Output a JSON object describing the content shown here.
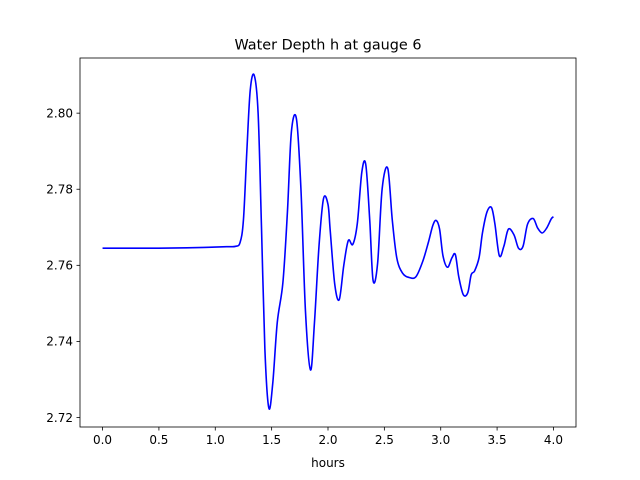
{
  "chart_data": {
    "type": "line",
    "title": "Water Depth h at gauge 6",
    "xlabel": "hours",
    "ylabel": "",
    "xlim": [
      -0.2,
      4.2
    ],
    "ylim": [
      2.7175,
      2.8145
    ],
    "xticks": [
      0.0,
      0.5,
      1.0,
      1.5,
      2.0,
      2.5,
      3.0,
      3.5,
      4.0
    ],
    "xtick_labels": [
      "0.0",
      "0.5",
      "1.0",
      "1.5",
      "2.0",
      "2.5",
      "3.0",
      "3.5",
      "4.0"
    ],
    "yticks": [
      2.72,
      2.74,
      2.76,
      2.78,
      2.8
    ],
    "ytick_labels": [
      "2.72",
      "2.74",
      "2.76",
      "2.78",
      "2.80"
    ],
    "grid": false,
    "legend": "none",
    "series": [
      {
        "color": "#0000ff",
        "x": [
          0.0,
          0.25,
          0.5,
          0.75,
          0.9,
          1.0,
          1.1,
          1.18,
          1.22,
          1.25,
          1.28,
          1.31,
          1.345,
          1.38,
          1.41,
          1.44,
          1.475,
          1.51,
          1.55,
          1.6,
          1.64,
          1.675,
          1.72,
          1.76,
          1.8,
          1.845,
          1.88,
          1.92,
          1.96,
          2.0,
          2.02,
          2.06,
          2.1,
          2.14,
          2.18,
          2.22,
          2.26,
          2.3,
          2.335,
          2.37,
          2.4,
          2.44,
          2.48,
          2.53,
          2.57,
          2.61,
          2.66,
          2.72,
          2.78,
          2.84,
          2.89,
          2.93,
          2.96,
          2.99,
          3.02,
          3.06,
          3.1,
          3.13,
          3.16,
          3.2,
          3.24,
          3.27,
          3.3,
          3.34,
          3.37,
          3.41,
          3.45,
          3.48,
          3.52,
          3.56,
          3.6,
          3.65,
          3.69,
          3.73,
          3.77,
          3.82,
          3.86,
          3.9,
          3.94,
          3.98,
          4.0
        ],
        "y": [
          2.7645,
          2.7645,
          2.7645,
          2.7646,
          2.7647,
          2.7648,
          2.7649,
          2.765,
          2.766,
          2.772,
          2.79,
          2.806,
          2.81,
          2.8,
          2.77,
          2.738,
          2.7225,
          2.729,
          2.745,
          2.7555,
          2.774,
          2.795,
          2.7985,
          2.78,
          2.748,
          2.7325,
          2.745,
          2.765,
          2.7775,
          2.776,
          2.769,
          2.755,
          2.751,
          2.76,
          2.7665,
          2.7655,
          2.771,
          2.7845,
          2.7865,
          2.772,
          2.756,
          2.7605,
          2.78,
          2.7855,
          2.772,
          2.762,
          2.758,
          2.7568,
          2.757,
          2.761,
          2.766,
          2.7705,
          2.7718,
          2.7695,
          2.7625,
          2.7595,
          2.762,
          2.7628,
          2.757,
          2.7523,
          2.7528,
          2.7575,
          2.7585,
          2.762,
          2.7685,
          2.774,
          2.7752,
          2.771,
          2.7625,
          2.765,
          2.7695,
          2.768,
          2.7645,
          2.765,
          2.7708,
          2.7723,
          2.7698,
          2.7685,
          2.7698,
          2.7722,
          2.7728
        ]
      }
    ]
  }
}
